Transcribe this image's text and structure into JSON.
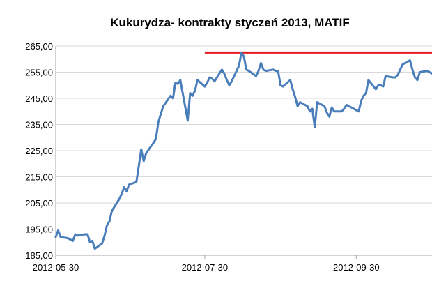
{
  "chart_data": {
    "type": "line",
    "title": "Kukurydza- kontrakty styczeń 2013, MATIF",
    "ylabel": "",
    "xlabel": "",
    "x_start": "2012-05-30",
    "x_end": "2012-10-31",
    "x_ticks": [
      "2012-05-30",
      "2012-07-30",
      "2012-09-30"
    ],
    "ylim": [
      185,
      265
    ],
    "y_ticks": [
      "185,00",
      "195,00",
      "205,00",
      "215,00",
      "225,00",
      "235,00",
      "245,00",
      "255,00",
      "265,00"
    ],
    "grid": "horizontal",
    "legend": "none",
    "colors": {
      "series": "#4a7ebb",
      "reference_line": "#e31b23",
      "grid": "#d9d9d9",
      "axis": "#a6a6a6"
    },
    "reference_line": {
      "y": 262.5,
      "x_from": "2012-07-30",
      "x_to": "2012-10-31"
    },
    "series": [
      {
        "name": "",
        "x": [
          "2012-05-30",
          "2012-05-31",
          "2012-06-01",
          "2012-06-04",
          "2012-06-05",
          "2012-06-06",
          "2012-06-07",
          "2012-06-08",
          "2012-06-11",
          "2012-06-12",
          "2012-06-13",
          "2012-06-14",
          "2012-06-15",
          "2012-06-18",
          "2012-06-19",
          "2012-06-20",
          "2012-06-21",
          "2012-06-22",
          "2012-06-25",
          "2012-06-26",
          "2012-06-27",
          "2012-06-28",
          "2012-06-29",
          "2012-07-02",
          "2012-07-03",
          "2012-07-04",
          "2012-07-05",
          "2012-07-06",
          "2012-07-09",
          "2012-07-10",
          "2012-07-11",
          "2012-07-12",
          "2012-07-13",
          "2012-07-16",
          "2012-07-17",
          "2012-07-18",
          "2012-07-19",
          "2012-07-20",
          "2012-07-23",
          "2012-07-24",
          "2012-07-25",
          "2012-07-26",
          "2012-07-27",
          "2012-07-30",
          "2012-07-31",
          "2012-08-01",
          "2012-08-02",
          "2012-08-03",
          "2012-08-06",
          "2012-08-07",
          "2012-08-08",
          "2012-08-09",
          "2012-08-10",
          "2012-08-13",
          "2012-08-14",
          "2012-08-15",
          "2012-08-16",
          "2012-08-17",
          "2012-08-20",
          "2012-08-21",
          "2012-08-22",
          "2012-08-23",
          "2012-08-24",
          "2012-08-27",
          "2012-08-28",
          "2012-08-29",
          "2012-08-30",
          "2012-08-31",
          "2012-09-03",
          "2012-09-04",
          "2012-09-05",
          "2012-09-06",
          "2012-09-07",
          "2012-09-10",
          "2012-09-11",
          "2012-09-12",
          "2012-09-13",
          "2012-09-14",
          "2012-09-17",
          "2012-09-18",
          "2012-09-19",
          "2012-09-20",
          "2012-09-21",
          "2012-09-24",
          "2012-09-25",
          "2012-09-26",
          "2012-09-27",
          "2012-09-28",
          "2012-10-01",
          "2012-10-02",
          "2012-10-03",
          "2012-10-04",
          "2012-10-05",
          "2012-10-08",
          "2012-10-09",
          "2012-10-10",
          "2012-10-11",
          "2012-10-12",
          "2012-10-15",
          "2012-10-16",
          "2012-10-17",
          "2012-10-18",
          "2012-10-19",
          "2012-10-22",
          "2012-10-23",
          "2012-10-24",
          "2012-10-25",
          "2012-10-26",
          "2012-10-29",
          "2012-10-30",
          "2012-10-31"
        ],
        "values": [
          192.0,
          194.5,
          192.0,
          191.5,
          191.0,
          190.5,
          193.0,
          192.5,
          193.0,
          193.0,
          190.0,
          190.5,
          187.5,
          189.5,
          192.5,
          196.5,
          198.0,
          202.0,
          206.5,
          208.5,
          211.0,
          209.5,
          212.0,
          213.0,
          219.0,
          225.5,
          221.0,
          224.0,
          228.0,
          229.5,
          236.0,
          239.0,
          242.0,
          246.0,
          245.0,
          251.0,
          250.5,
          252.0,
          236.5,
          247.0,
          246.0,
          248.0,
          252.0,
          249.5,
          251.0,
          253.0,
          252.5,
          251.5,
          256.0,
          254.5,
          252.0,
          250.0,
          251.5,
          257.5,
          262.5,
          261.0,
          256.0,
          255.5,
          253.5,
          255.5,
          258.5,
          256.0,
          255.5,
          256.0,
          255.5,
          255.5,
          250.0,
          249.5,
          252.0,
          248.5,
          245.5,
          242.0,
          243.5,
          242.0,
          240.0,
          241.0,
          234.0,
          243.5,
          242.0,
          239.5,
          238.0,
          241.5,
          240.0,
          240.0,
          241.0,
          242.5,
          242.0,
          241.5,
          240.0,
          244.0,
          246.0,
          247.0,
          252.0,
          248.5,
          250.0,
          250.0,
          249.5,
          253.5,
          253.0,
          253.0,
          254.0,
          256.0,
          258.0,
          259.5,
          256.0,
          253.0,
          252.0,
          255.0,
          255.5,
          255.0,
          254.5
        ]
      }
    ]
  }
}
